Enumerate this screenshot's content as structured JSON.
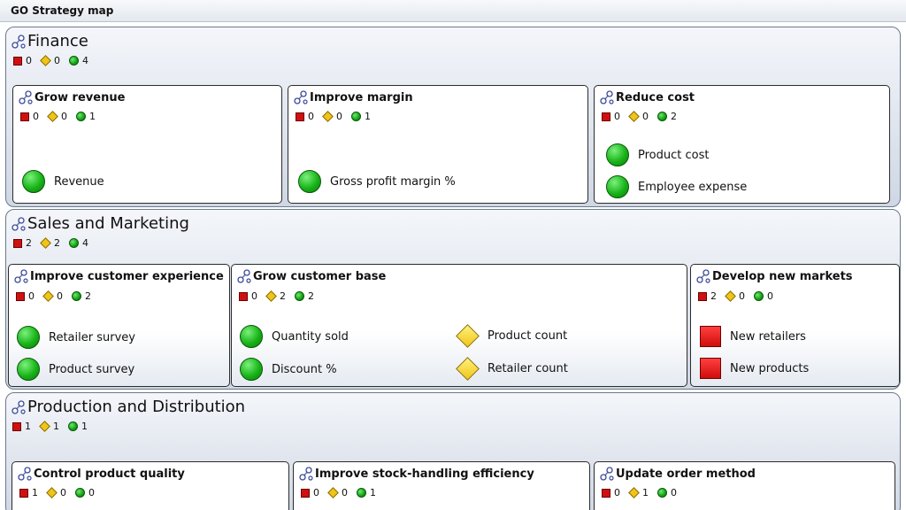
{
  "window": {
    "title": "GO Strategy map"
  },
  "colors": {
    "red": "#d01010",
    "yellow": "#f0c419",
    "green": "#12a012",
    "border": "#6b7a8c"
  },
  "perspectives": [
    {
      "name": "Finance",
      "counts": {
        "red": "0",
        "yellow": "0",
        "green": "4"
      },
      "objectives": [
        {
          "title": "Grow revenue",
          "counts": {
            "red": "0",
            "yellow": "0",
            "green": "1"
          },
          "metrics": [
            {
              "label": "Revenue",
              "status": "green-circle-icon"
            }
          ]
        },
        {
          "title": "Improve margin",
          "counts": {
            "red": "0",
            "yellow": "0",
            "green": "1"
          },
          "metrics": [
            {
              "label": "Gross profit margin %",
              "status": "green-circle-icon"
            }
          ]
        },
        {
          "title": "Reduce cost",
          "counts": {
            "red": "0",
            "yellow": "0",
            "green": "2"
          },
          "metrics": [
            {
              "label": "Product cost",
              "status": "green-circle-icon"
            },
            {
              "label": "Employee expense",
              "status": "green-circle-icon"
            }
          ]
        }
      ]
    },
    {
      "name": "Sales and Marketing",
      "counts": {
        "red": "2",
        "yellow": "2",
        "green": "4"
      },
      "objectives": [
        {
          "title": "Improve customer experience",
          "counts": {
            "red": "0",
            "yellow": "0",
            "green": "2"
          },
          "metrics": [
            {
              "label": "Retailer survey",
              "status": "green-circle-icon"
            },
            {
              "label": "Product survey",
              "status": "green-circle-icon"
            }
          ]
        },
        {
          "title": "Grow customer base",
          "counts": {
            "red": "0",
            "yellow": "2",
            "green": "2"
          },
          "metrics": [
            {
              "label": "Quantity sold",
              "status": "green-circle-icon"
            },
            {
              "label": "Discount %",
              "status": "green-circle-icon"
            },
            {
              "label": "Product count",
              "status": "yellow-diamond-icon"
            },
            {
              "label": "Retailer count",
              "status": "yellow-diamond-icon"
            }
          ]
        },
        {
          "title": "Develop new markets",
          "counts": {
            "red": "2",
            "yellow": "0",
            "green": "0"
          },
          "metrics": [
            {
              "label": "New retailers",
              "status": "red-square-icon"
            },
            {
              "label": "New products",
              "status": "red-square-icon"
            }
          ]
        }
      ]
    },
    {
      "name": "Production and Distribution",
      "counts": {
        "red": "1",
        "yellow": "1",
        "green": "1"
      },
      "objectives": [
        {
          "title": "Control product quality",
          "counts": {
            "red": "1",
            "yellow": "0",
            "green": "0"
          },
          "metrics": []
        },
        {
          "title": "Improve stock-handling efficiency",
          "counts": {
            "red": "0",
            "yellow": "0",
            "green": "1"
          },
          "metrics": []
        },
        {
          "title": "Update order method",
          "counts": {
            "red": "0",
            "yellow": "1",
            "green": "0"
          },
          "metrics": []
        }
      ]
    }
  ]
}
